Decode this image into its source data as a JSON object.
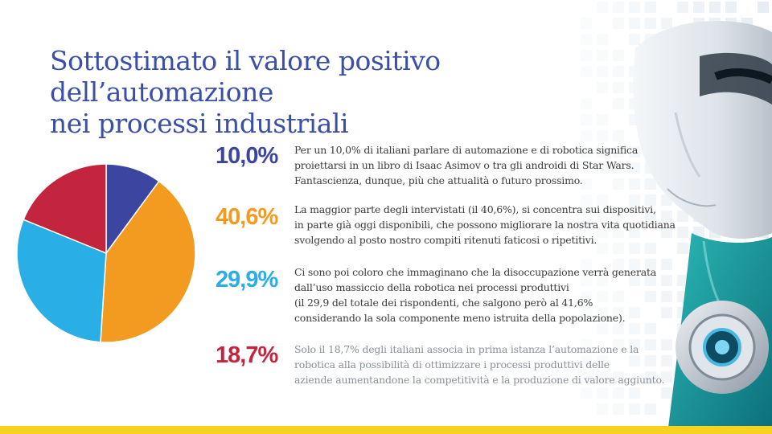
{
  "title": {
    "line1": "Sottostimato il valore positivo dell’automazione",
    "line2": "nei processi industriali"
  },
  "colors": {
    "title": "#3a4fa8",
    "blue_dark": "#3c46a0",
    "orange": "#f39a20",
    "light_blue": "#2aaee6",
    "red": "#c3243e",
    "bottom_bar": "#f7d21f"
  },
  "stats": [
    {
      "percent": "10,0%",
      "lines": [
        "Per un 10,0% di italiani parlare di automazione e di robotica significa",
        "proiettarsi in un libro di Isaac Asimov o tra gli androidi di Star Wars.",
        "Fantascienza, dunque, più che attualità o futuro prossimo."
      ]
    },
    {
      "percent": "40,6%",
      "lines": [
        "La maggior parte degli intervistati (il 40,6%), si concentra sui dispositivi,",
        "in parte già oggi disponibili, che possono migliorare la nostra vita quotidiana",
        "svolgendo al posto nostro compiti ritenuti faticosi o ripetitivi."
      ]
    },
    {
      "percent": "29,9%",
      "lines": [
        "Ci sono poi coloro che immaginano che la disoccupazione verrà generata",
        "dall’uso massiccio della robotica nei processi produttivi",
        "(il 29,9 del totale dei rispondenti, che salgono però al 41,6%",
        "considerando la sola componente meno istruita della popolazione)."
      ]
    },
    {
      "percent": "18,7%",
      "lines": [
        "Solo il 18,7% degli italiani associa in prima istanza l’automazione e la",
        "robotica alla possibilità di ottimizzare i processi produttivi delle",
        "aziende aumentandone la competitività e la produzione di valore aggiunto."
      ]
    }
  ],
  "chart_data": {
    "type": "pie",
    "categories": [
      "10,0%",
      "40,6%",
      "29,9%",
      "18,7%"
    ],
    "values": [
      10.0,
      40.6,
      29.9,
      18.7
    ],
    "colors": [
      "#3c46a0",
      "#f39a20",
      "#2aaee6",
      "#c3243e"
    ],
    "start": "top",
    "direction": "clockwise"
  },
  "decoration": {
    "icon": "robot-illustration-icon"
  }
}
